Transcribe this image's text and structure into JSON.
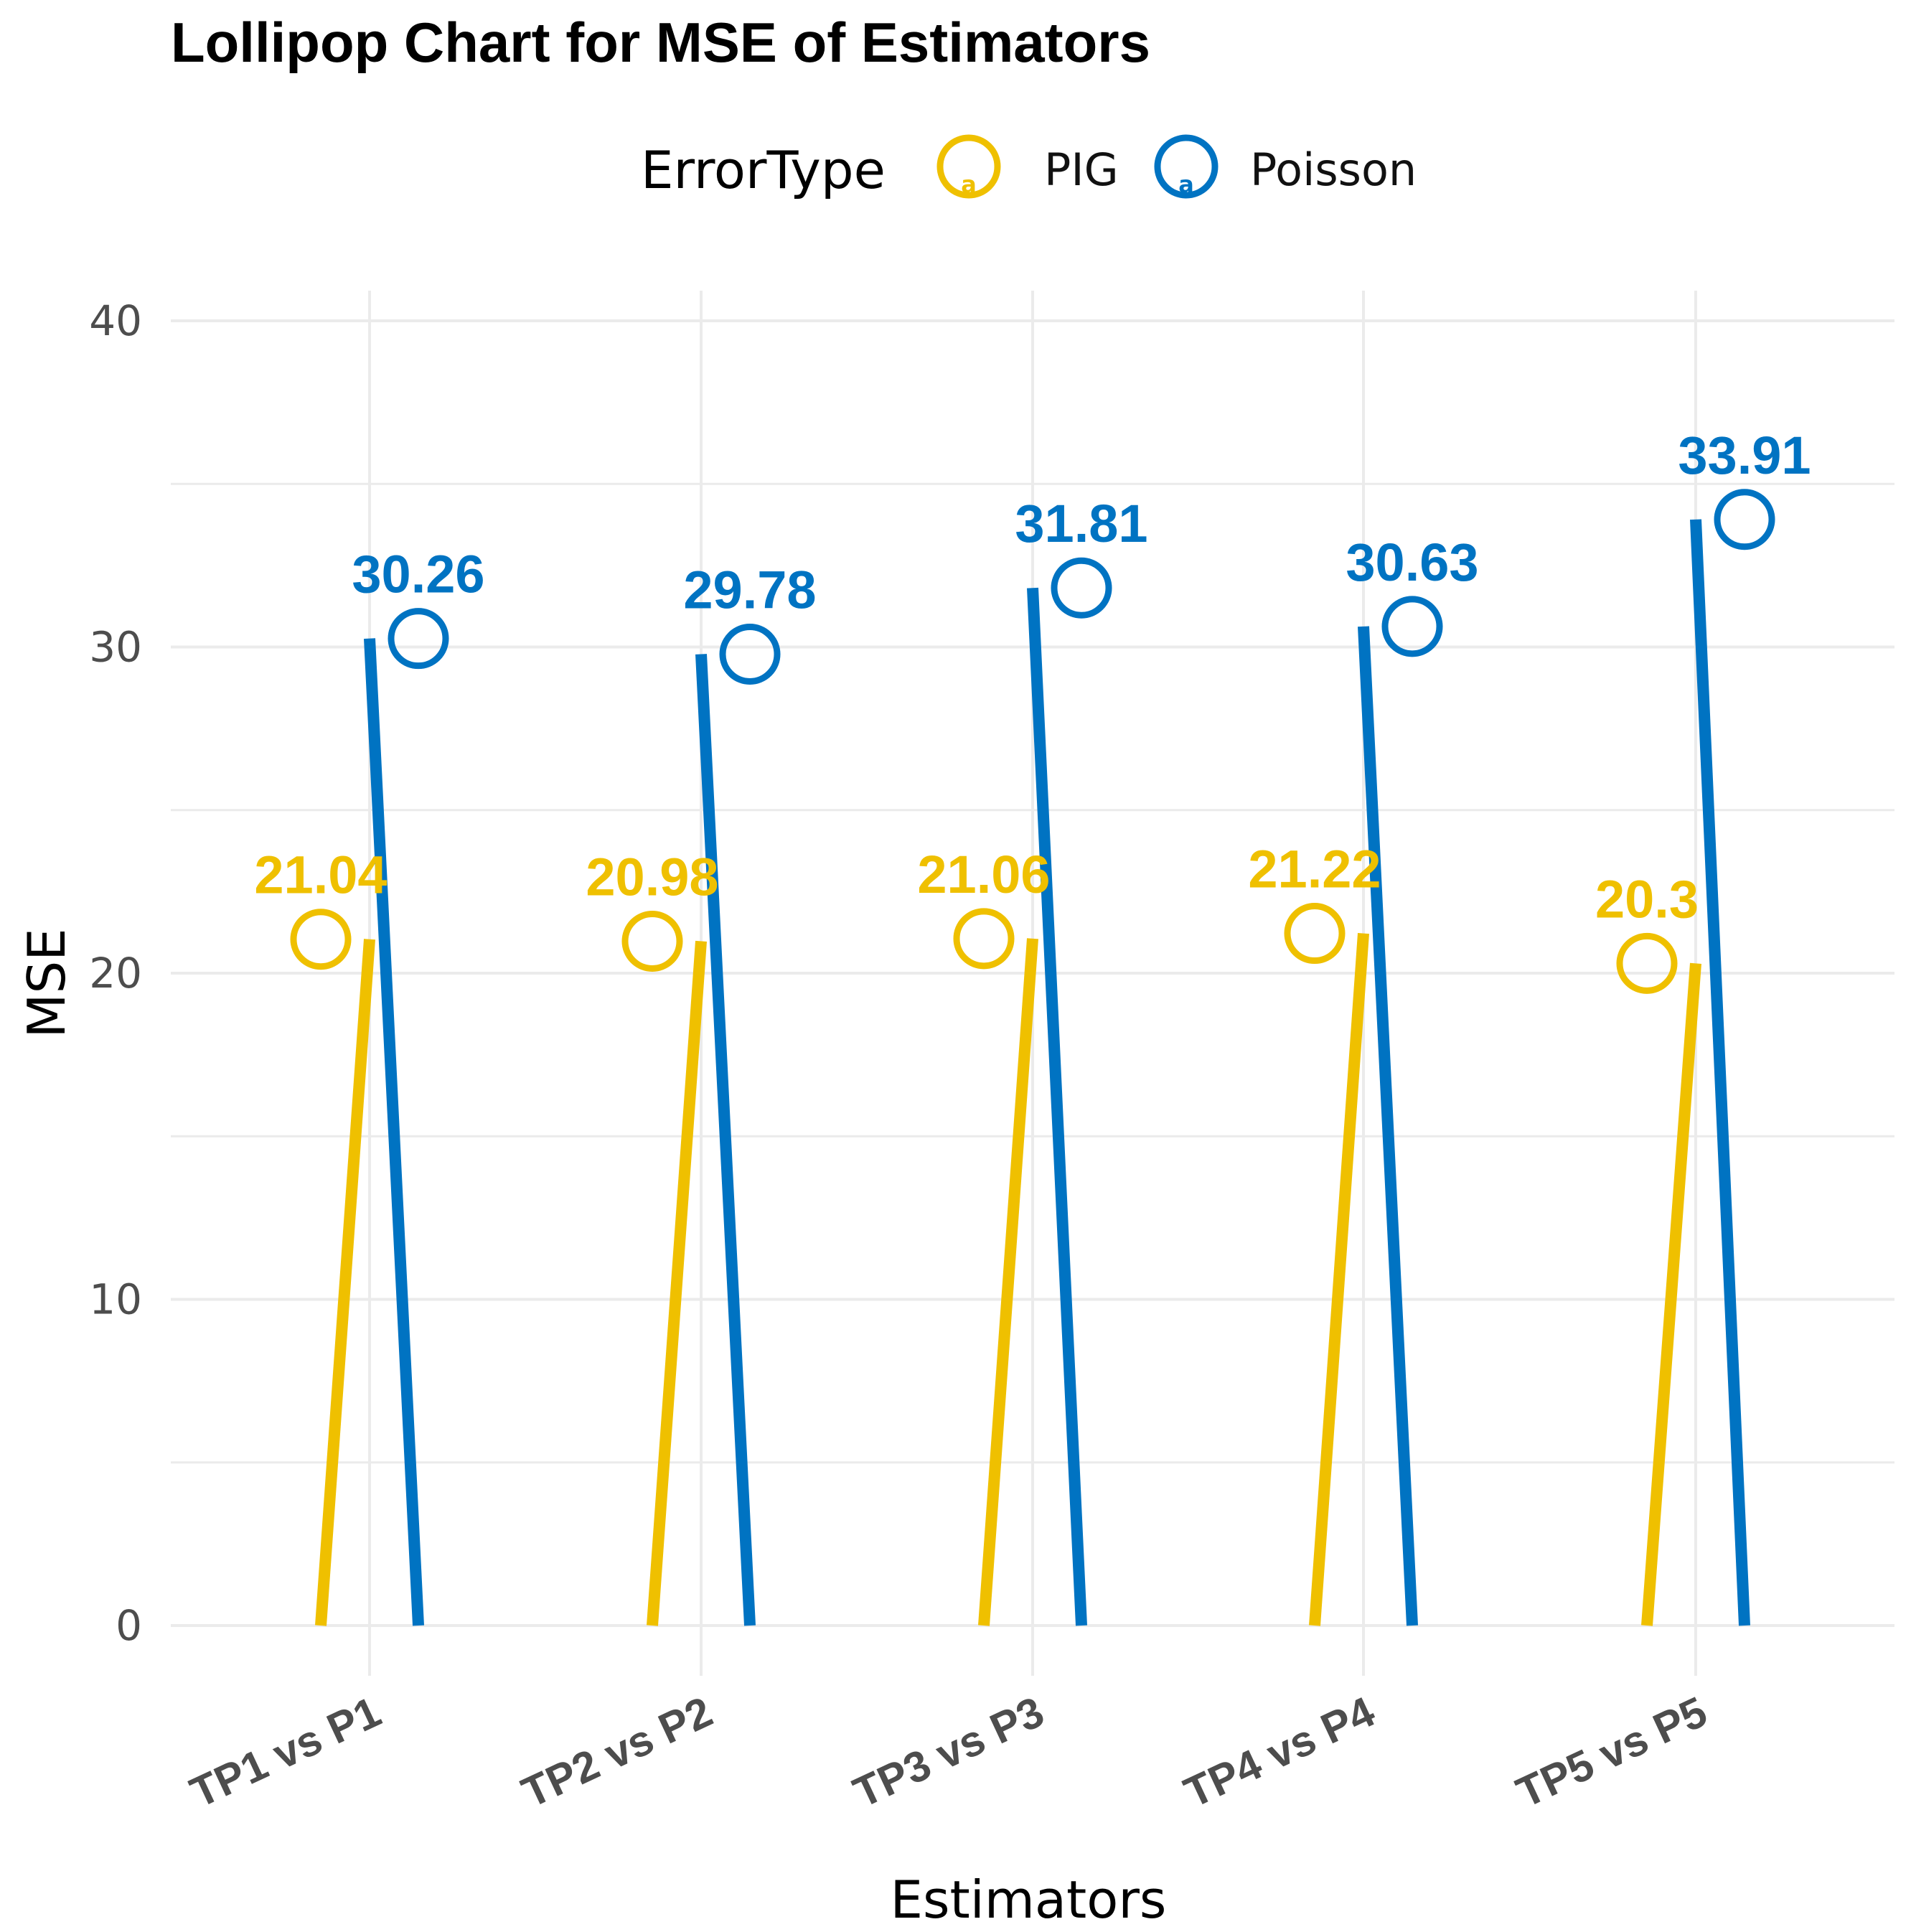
{
  "chart_data": {
    "type": "lollipop",
    "title": "Lollipop Chart for MSE of Estimators",
    "xlabel": "Estimators",
    "ylabel": "MSE",
    "ylim": [
      0,
      40
    ],
    "y_ticks": [
      0,
      10,
      20,
      30,
      40
    ],
    "categories": [
      "TP1 vs P1",
      "TP2 vs P2",
      "TP3 vs P3",
      "TP4 vs P4",
      "TP5 vs P5"
    ],
    "legend": {
      "title": "ErrorType",
      "position": "top",
      "entries": [
        "PIG",
        "Poisson"
      ]
    },
    "series": [
      {
        "name": "PIG",
        "color": "#EFC000",
        "values": [
          21.04,
          20.98,
          21.06,
          21.22,
          20.3
        ],
        "labels": [
          "21.04",
          "20.98",
          "21.06",
          "21.22",
          "20.3"
        ]
      },
      {
        "name": "Poisson",
        "color": "#0073C2",
        "values": [
          30.26,
          29.78,
          31.81,
          30.63,
          33.91
        ],
        "labels": [
          "30.26",
          "29.78",
          "31.81",
          "30.63",
          "33.91"
        ]
      }
    ]
  }
}
